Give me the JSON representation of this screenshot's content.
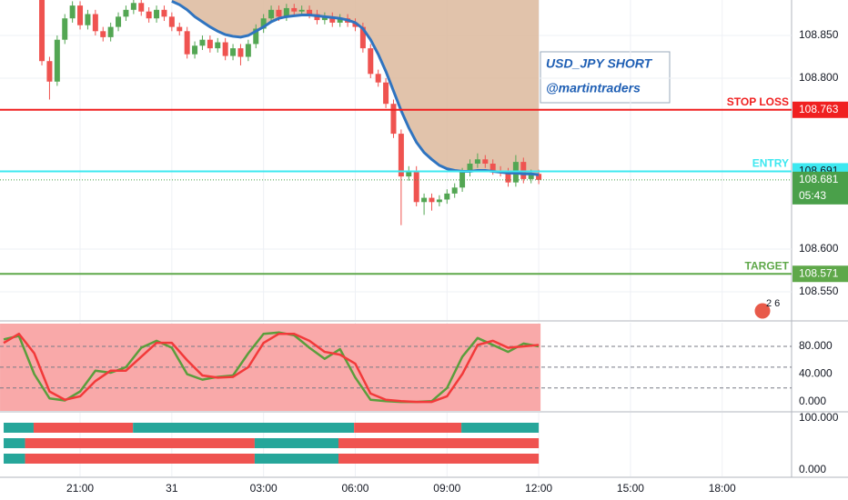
{
  "chart_data": [
    {
      "type": "candlestick",
      "x": [
        19.75,
        20,
        20.25,
        20.5,
        20.75,
        21,
        21.25,
        21.5,
        21.75,
        22,
        22.25,
        22.5,
        22.75,
        23,
        23.25,
        23.5,
        23.75,
        24,
        24.25,
        24.5,
        24.75,
        25,
        25.25,
        25.5,
        25.75,
        26,
        26.25,
        26.5,
        26.75,
        27,
        27.25,
        27.5,
        27.75,
        28,
        28.25,
        28.5,
        28.75,
        29,
        29.25,
        29.5,
        29.75,
        30,
        30.25,
        30.5,
        30.75,
        31,
        31.25,
        31.5,
        31.75,
        32,
        32.25,
        32.5,
        32.75,
        33,
        33.25,
        33.5,
        33.75,
        34,
        34.25,
        34.5,
        34.75,
        35,
        35.25,
        35.5,
        35.75,
        36
      ],
      "open": [
        108.895,
        108.82,
        108.796,
        108.845,
        108.87,
        108.885,
        108.862,
        108.875,
        108.855,
        108.848,
        108.86,
        108.872,
        108.88,
        108.888,
        108.878,
        108.87,
        108.88,
        108.872,
        108.86,
        108.855,
        108.828,
        108.838,
        108.845,
        108.835,
        108.842,
        108.826,
        108.835,
        108.825,
        108.84,
        108.858,
        108.87,
        108.88,
        108.872,
        108.882,
        108.878,
        108.88,
        108.875,
        108.868,
        108.872,
        108.865,
        108.87,
        108.865,
        108.86,
        108.835,
        108.805,
        108.795,
        108.77,
        108.735,
        108.685,
        108.692,
        108.655,
        108.66,
        108.655,
        108.658,
        108.665,
        108.672,
        108.69,
        108.7,
        108.705,
        108.7,
        108.692,
        108.69,
        108.678,
        108.702,
        108.682,
        108.688
      ],
      "high": [
        108.9,
        108.825,
        108.85,
        108.875,
        108.89,
        108.89,
        108.88,
        108.88,
        108.86,
        108.865,
        108.877,
        108.885,
        108.893,
        108.893,
        108.883,
        108.885,
        108.885,
        108.877,
        108.865,
        108.86,
        108.843,
        108.85,
        108.85,
        108.847,
        108.847,
        108.84,
        108.84,
        108.845,
        108.863,
        108.875,
        108.885,
        108.885,
        108.887,
        108.887,
        108.885,
        108.885,
        108.88,
        108.877,
        108.877,
        108.875,
        108.875,
        108.87,
        108.865,
        108.84,
        108.81,
        108.8,
        108.775,
        108.74,
        108.697,
        108.697,
        108.665,
        108.665,
        108.663,
        108.67,
        108.677,
        108.695,
        108.705,
        108.712,
        108.71,
        108.705,
        108.697,
        108.695,
        108.71,
        108.707,
        108.693,
        108.693
      ],
      "low": [
        108.815,
        108.775,
        108.791,
        108.84,
        108.865,
        108.857,
        108.857,
        108.85,
        108.843,
        108.843,
        108.855,
        108.867,
        108.875,
        108.873,
        108.865,
        108.865,
        108.867,
        108.855,
        108.85,
        108.823,
        108.823,
        108.833,
        108.83,
        108.83,
        108.821,
        108.821,
        108.815,
        108.82,
        108.835,
        108.853,
        108.865,
        108.867,
        108.867,
        108.873,
        108.873,
        108.87,
        108.863,
        108.863,
        108.86,
        108.86,
        108.86,
        108.855,
        108.83,
        108.8,
        108.79,
        108.765,
        108.73,
        108.628,
        108.68,
        108.65,
        108.64,
        108.645,
        108.65,
        108.653,
        108.66,
        108.667,
        108.685,
        108.695,
        108.695,
        108.687,
        108.685,
        108.673,
        108.673,
        108.677,
        108.677,
        108.676
      ],
      "close": [
        108.82,
        108.796,
        108.845,
        108.87,
        108.885,
        108.862,
        108.875,
        108.855,
        108.848,
        108.86,
        108.872,
        108.88,
        108.888,
        108.878,
        108.87,
        108.88,
        108.872,
        108.86,
        108.855,
        108.828,
        108.838,
        108.845,
        108.835,
        108.842,
        108.826,
        108.835,
        108.825,
        108.84,
        108.858,
        108.87,
        108.88,
        108.872,
        108.882,
        108.878,
        108.88,
        108.875,
        108.868,
        108.872,
        108.865,
        108.87,
        108.865,
        108.86,
        108.835,
        108.805,
        108.795,
        108.77,
        108.735,
        108.685,
        108.692,
        108.655,
        108.66,
        108.655,
        108.658,
        108.665,
        108.672,
        108.69,
        108.7,
        108.705,
        108.7,
        108.692,
        108.69,
        108.678,
        108.702,
        108.682,
        108.688,
        108.681
      ],
      "up_color": "#53a653",
      "down_color": "#ef5350",
      "ma": [
        null,
        null,
        null,
        null,
        null,
        null,
        null,
        null,
        null,
        null,
        null,
        null,
        null,
        null,
        null,
        null,
        null,
        108.89,
        108.886,
        108.88,
        108.872,
        108.866,
        108.86,
        108.855,
        108.851,
        108.849,
        108.848,
        108.85,
        108.855,
        108.86,
        108.866,
        108.87,
        108.872,
        108.873,
        108.874,
        108.874,
        108.873,
        108.872,
        108.871,
        108.87,
        108.868,
        108.865,
        108.858,
        108.845,
        108.828,
        108.808,
        108.785,
        108.762,
        108.742,
        108.725,
        108.713,
        108.705,
        108.698,
        108.694,
        108.692,
        108.691,
        108.691,
        108.692,
        108.692,
        108.691,
        108.69,
        108.689,
        108.689,
        108.688,
        108.688,
        108.687
      ],
      "ma_color": "#2f74c0",
      "ribbon_color": "#dcb89c",
      "xlim": [
        18.38,
        44.27
      ],
      "xticks": [
        {
          "value": 21,
          "label": "21:00"
        },
        {
          "value": 24,
          "label": "31"
        },
        {
          "value": 27,
          "label": "03:00"
        },
        {
          "value": 30,
          "label": "06:00"
        },
        {
          "value": 33,
          "label": "09:00"
        },
        {
          "value": 36,
          "label": "12:00"
        },
        {
          "value": 39,
          "label": "15:00"
        },
        {
          "value": 42,
          "label": "18:00"
        }
      ],
      "ylim": [
        108.517,
        108.8915
      ],
      "yticks": [
        {
          "value": 108.85,
          "label": "108.850"
        },
        {
          "value": 108.8,
          "label": "108.800"
        },
        {
          "value": 108.6,
          "label": "108.600"
        },
        {
          "value": 108.55,
          "label": "108.550"
        }
      ],
      "grid": true,
      "levels": [
        {
          "name": "STOP LOSS",
          "value": 108.763,
          "color": "#f02020",
          "text_color": "#ffffff"
        },
        {
          "name": "ENTRY",
          "value": 108.691,
          "color": "#3de8f0",
          "text_color": "#131722"
        },
        {
          "name": "TARGET",
          "value": 108.571,
          "color": "#5fa84a",
          "text_color": "#ffffff"
        }
      ],
      "current": {
        "value": 108.681,
        "countdown": "05:43",
        "color": "#4aa04a"
      },
      "annotations": [
        "USD_JPY SHORT",
        "@martintraders"
      ],
      "badge": "2 6"
    },
    {
      "type": "line",
      "x": [
        18.5,
        19,
        19.5,
        20,
        20.5,
        21,
        21.5,
        22,
        22.5,
        23,
        23.5,
        24,
        24.5,
        25,
        25.5,
        26,
        26.5,
        27,
        27.5,
        28,
        28.5,
        29,
        29.5,
        30,
        30.5,
        31,
        31.5,
        32,
        32.5,
        33,
        33.5,
        34,
        34.5,
        35,
        35.5,
        36
      ],
      "series": [
        {
          "color": "#5a9e3c",
          "values": [
            90,
            95,
            40,
            5,
            2,
            15,
            45,
            42,
            50,
            78,
            88,
            78,
            40,
            32,
            36,
            38,
            70,
            98,
            100,
            96,
            78,
            62,
            76,
            35,
            3,
            1,
            0,
            0,
            1,
            20,
            65,
            92,
            82,
            72,
            84,
            80
          ]
        },
        {
          "color": "#f23a3a",
          "values": [
            85,
            98,
            70,
            15,
            3,
            8,
            30,
            45,
            45,
            65,
            85,
            85,
            60,
            38,
            35,
            36,
            50,
            85,
            98,
            98,
            88,
            72,
            68,
            55,
            12,
            3,
            1,
            0,
            0,
            8,
            40,
            82,
            88,
            78,
            80,
            82
          ]
        }
      ],
      "background": "#f9a9a9",
      "xlim": [
        18.38,
        44.27
      ],
      "ylim": [
        -13,
        114
      ],
      "yticks": [
        {
          "value": 0,
          "label": "0.000"
        },
        {
          "value": 40,
          "label": "40.000"
        },
        {
          "value": 80,
          "label": "80.000"
        }
      ],
      "bands": [
        80,
        50,
        20
      ]
    },
    {
      "type": "timeline",
      "xlim": [
        18.38,
        44.27
      ],
      "ylim": [
        -12.3,
        110.5
      ],
      "yticks": [
        {
          "value": 100,
          "label": "100.000"
        },
        {
          "value": 0,
          "label": "0.000"
        }
      ],
      "rows": [
        {
          "segments": [
            {
              "start": 18.5,
              "end": 19.48,
              "color": "#26a69a"
            },
            {
              "start": 19.48,
              "end": 22.73,
              "color": "#ef5350"
            },
            {
              "start": 22.73,
              "end": 29.96,
              "color": "#26a69a"
            },
            {
              "start": 29.96,
              "end": 33.47,
              "color": "#ef5350"
            },
            {
              "start": 33.47,
              "end": 36,
              "color": "#26a69a"
            }
          ]
        },
        {
          "segments": [
            {
              "start": 18.5,
              "end": 19.2,
              "color": "#26a69a"
            },
            {
              "start": 19.2,
              "end": 26.71,
              "color": "#ef5350"
            },
            {
              "start": 26.71,
              "end": 29.45,
              "color": "#26a69a"
            },
            {
              "start": 29.45,
              "end": 36,
              "color": "#ef5350"
            }
          ]
        },
        {
          "segments": [
            {
              "start": 18.5,
              "end": 19.2,
              "color": "#26a69a"
            },
            {
              "start": 19.2,
              "end": 26.71,
              "color": "#ef5350"
            },
            {
              "start": 26.71,
              "end": 29.45,
              "color": "#26a69a"
            },
            {
              "start": 29.45,
              "end": 36,
              "color": "#ef5350"
            }
          ]
        }
      ]
    }
  ]
}
